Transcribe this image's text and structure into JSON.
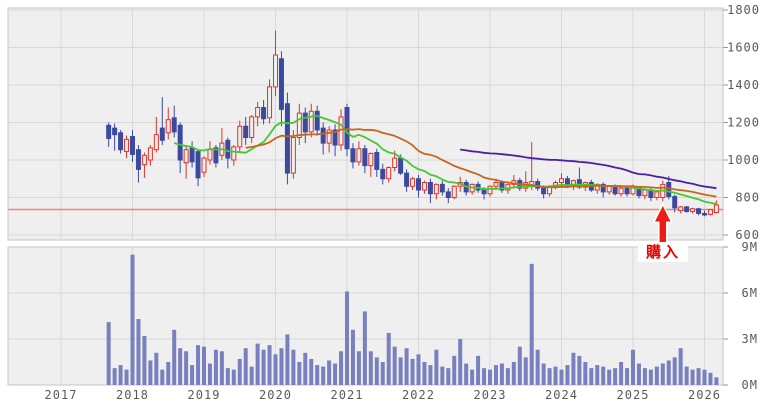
{
  "chart_data": {
    "type": "candlestick_with_volume",
    "title": "",
    "price_axis": {
      "side": "right",
      "min": 600,
      "max": 1800,
      "tick_values": [
        1800,
        1600,
        1400,
        1200,
        1000,
        800,
        600
      ],
      "tick_labels": [
        "1800",
        "1600",
        "1400",
        "1200",
        "1000",
        "800",
        "600"
      ]
    },
    "volume_axis": {
      "side": "right",
      "min_m": 0,
      "max_m": 9,
      "tick_values_m": [
        9,
        6,
        3,
        0
      ],
      "tick_labels": [
        "9M",
        "6M",
        "3M",
        "0M"
      ]
    },
    "x_axis": {
      "labels": [
        "2017",
        "2018",
        "2019",
        "2020",
        "2021",
        "2022",
        "2023",
        "2024",
        "2025",
        "2026"
      ],
      "first_candle_month": "2017-09"
    },
    "reference_line": {
      "price": 736,
      "color": "#f2837a"
    },
    "moving_averages": [
      {
        "name": "short-ma",
        "period": 12,
        "color": "#46c832"
      },
      {
        "name": "mid-ma",
        "period": 24,
        "color": "#c8661e"
      },
      {
        "name": "long-ma",
        "period": 60,
        "color": "#4a1fa8"
      }
    ],
    "annotation": {
      "label": "購入",
      "month": "2025-06",
      "color": "#ed1c16"
    },
    "colors": {
      "up_candle": "#e03228",
      "down_candle": "#3a4a9f",
      "volume_bar": "#7880bf",
      "panel_bg": "#efefef",
      "grid": "#d8d8d8",
      "border": "#c6c6c6",
      "axis_text": "#595959"
    },
    "candles_columns": [
      "month",
      "open",
      "high",
      "low",
      "close",
      "volume_m"
    ],
    "candles": [
      [
        "2017-09",
        1185,
        1200,
        1070,
        1115,
        4.1
      ],
      [
        "2017-10",
        1170,
        1195,
        1050,
        1135,
        1.1
      ],
      [
        "2017-11",
        1145,
        1160,
        1035,
        1055,
        1.3
      ],
      [
        "2017-12",
        1045,
        1130,
        1010,
        1110,
        1.0
      ],
      [
        "2018-01",
        1125,
        1160,
        990,
        1030,
        8.5
      ],
      [
        "2018-02",
        1055,
        1080,
        880,
        950,
        4.3
      ],
      [
        "2018-03",
        975,
        1040,
        905,
        1025,
        3.2
      ],
      [
        "2018-04",
        1000,
        1080,
        970,
        1065,
        1.6
      ],
      [
        "2018-05",
        1055,
        1230,
        1040,
        1135,
        2.1
      ],
      [
        "2018-06",
        1170,
        1335,
        1080,
        1105,
        1.0
      ],
      [
        "2018-07",
        1145,
        1280,
        1110,
        1215,
        1.5
      ],
      [
        "2018-08",
        1225,
        1290,
        1120,
        1150,
        3.6
      ],
      [
        "2018-09",
        1185,
        1200,
        930,
        1000,
        2.4
      ],
      [
        "2018-10",
        985,
        1080,
        900,
        1055,
        2.2
      ],
      [
        "2018-11",
        1065,
        1100,
        960,
        990,
        1.3
      ],
      [
        "2018-12",
        1045,
        1060,
        860,
        905,
        2.6
      ],
      [
        "2019-01",
        935,
        1020,
        910,
        1010,
        2.5
      ],
      [
        "2019-02",
        1000,
        1100,
        975,
        1055,
        1.4
      ],
      [
        "2019-03",
        1065,
        1080,
        960,
        985,
        2.3
      ],
      [
        "2019-04",
        1025,
        1170,
        1000,
        1090,
        2.2
      ],
      [
        "2019-05",
        1105,
        1120,
        955,
        1010,
        1.1
      ],
      [
        "2019-06",
        1000,
        1080,
        970,
        1070,
        1.0
      ],
      [
        "2019-07",
        1070,
        1210,
        1040,
        1180,
        1.7
      ],
      [
        "2019-08",
        1180,
        1230,
        1080,
        1120,
        2.4
      ],
      [
        "2019-09",
        1120,
        1240,
        1090,
        1230,
        1.2
      ],
      [
        "2019-10",
        1230,
        1310,
        1180,
        1280,
        2.7
      ],
      [
        "2019-11",
        1280,
        1320,
        1190,
        1220,
        2.3
      ],
      [
        "2019-12",
        1225,
        1430,
        1195,
        1390,
        2.6
      ],
      [
        "2020-01",
        1390,
        1690,
        1340,
        1560,
        2.0
      ],
      [
        "2020-02",
        1540,
        1580,
        1180,
        1270,
        2.4
      ],
      [
        "2020-03",
        1300,
        1360,
        870,
        930,
        3.3
      ],
      [
        "2020-04",
        930,
        1160,
        900,
        1120,
        2.3
      ],
      [
        "2020-05",
        1120,
        1300,
        1080,
        1250,
        1.5
      ],
      [
        "2020-06",
        1250,
        1280,
        1090,
        1150,
        2.1
      ],
      [
        "2020-07",
        1150,
        1300,
        1120,
        1260,
        1.7
      ],
      [
        "2020-08",
        1260,
        1290,
        1130,
        1160,
        1.3
      ],
      [
        "2020-09",
        1170,
        1200,
        1030,
        1090,
        1.2
      ],
      [
        "2020-10",
        1090,
        1180,
        1040,
        1160,
        1.6
      ],
      [
        "2020-11",
        1160,
        1190,
        1020,
        1080,
        1.4
      ],
      [
        "2020-12",
        1080,
        1270,
        1050,
        1230,
        2.2
      ],
      [
        "2021-01",
        1280,
        1300,
        1020,
        1060,
        6.1
      ],
      [
        "2021-02",
        1060,
        1090,
        955,
        990,
        3.6
      ],
      [
        "2021-03",
        990,
        1100,
        970,
        1060,
        2.2
      ],
      [
        "2021-04",
        1060,
        1080,
        930,
        970,
        4.8
      ],
      [
        "2021-05",
        970,
        1040,
        910,
        1035,
        2.2
      ],
      [
        "2021-06",
        1040,
        1060,
        910,
        950,
        1.8
      ],
      [
        "2021-07",
        950,
        980,
        870,
        900,
        1.5
      ],
      [
        "2021-08",
        900,
        965,
        880,
        960,
        3.4
      ],
      [
        "2021-09",
        960,
        1050,
        940,
        1010,
        2.5
      ],
      [
        "2021-10",
        1010,
        1030,
        920,
        930,
        1.8
      ],
      [
        "2021-11",
        930,
        950,
        830,
        860,
        2.4
      ],
      [
        "2021-12",
        860,
        910,
        840,
        900,
        1.7
      ],
      [
        "2022-01",
        900,
        920,
        800,
        840,
        2.0
      ],
      [
        "2022-02",
        840,
        890,
        820,
        880,
        1.5
      ],
      [
        "2022-03",
        880,
        900,
        770,
        820,
        1.3
      ],
      [
        "2022-04",
        820,
        875,
        790,
        870,
        2.3
      ],
      [
        "2022-05",
        870,
        890,
        810,
        830,
        1.2
      ],
      [
        "2022-06",
        830,
        850,
        770,
        800,
        1.1
      ],
      [
        "2022-07",
        800,
        865,
        790,
        860,
        1.9
      ],
      [
        "2022-08",
        860,
        910,
        830,
        880,
        3.0
      ],
      [
        "2022-09",
        880,
        895,
        810,
        830,
        1.4
      ],
      [
        "2022-10",
        830,
        875,
        815,
        870,
        1.0
      ],
      [
        "2022-11",
        870,
        885,
        825,
        840,
        1.9
      ],
      [
        "2022-12",
        840,
        855,
        790,
        820,
        1.1
      ],
      [
        "2023-01",
        820,
        865,
        805,
        860,
        1.0
      ],
      [
        "2023-02",
        860,
        900,
        840,
        880,
        1.3
      ],
      [
        "2023-03",
        880,
        890,
        825,
        840,
        1.4
      ],
      [
        "2023-04",
        840,
        875,
        820,
        870,
        1.1
      ],
      [
        "2023-05",
        870,
        920,
        850,
        890,
        1.5
      ],
      [
        "2023-06",
        890,
        905,
        835,
        850,
        2.5
      ],
      [
        "2023-07",
        850,
        940,
        830,
        880,
        1.8
      ],
      [
        "2023-08",
        865,
        1095,
        840,
        885,
        7.9
      ],
      [
        "2023-09",
        885,
        900,
        835,
        850,
        2.3
      ],
      [
        "2023-10",
        850,
        865,
        795,
        820,
        1.4
      ],
      [
        "2023-11",
        820,
        865,
        805,
        860,
        1.1
      ],
      [
        "2023-12",
        860,
        890,
        845,
        880,
        1.2
      ],
      [
        "2024-01",
        880,
        930,
        860,
        900,
        1.0
      ],
      [
        "2024-02",
        900,
        915,
        850,
        860,
        1.3
      ],
      [
        "2024-03",
        860,
        895,
        840,
        890,
        2.1
      ],
      [
        "2024-04",
        895,
        960,
        845,
        855,
        1.9
      ],
      [
        "2024-05",
        855,
        885,
        835,
        880,
        1.5
      ],
      [
        "2024-06",
        880,
        895,
        830,
        840,
        1.1
      ],
      [
        "2024-07",
        840,
        875,
        820,
        870,
        1.3
      ],
      [
        "2024-08",
        870,
        880,
        800,
        830,
        1.2
      ],
      [
        "2024-09",
        830,
        865,
        815,
        860,
        1.0
      ],
      [
        "2024-10",
        860,
        870,
        810,
        820,
        1.1
      ],
      [
        "2024-11",
        820,
        855,
        805,
        850,
        1.5
      ],
      [
        "2024-12",
        850,
        860,
        805,
        820,
        1.1
      ],
      [
        "2025-01",
        820,
        870,
        810,
        850,
        2.3
      ],
      [
        "2025-02",
        850,
        860,
        795,
        810,
        1.4
      ],
      [
        "2025-03",
        810,
        845,
        790,
        840,
        1.1
      ],
      [
        "2025-04",
        840,
        850,
        780,
        800,
        1.0
      ],
      [
        "2025-05",
        800,
        835,
        785,
        830,
        1.2
      ],
      [
        "2025-06",
        800,
        890,
        780,
        870,
        1.4
      ],
      [
        "2025-07",
        880,
        915,
        790,
        805,
        1.6
      ],
      [
        "2025-08",
        805,
        815,
        720,
        745,
        1.8
      ],
      [
        "2025-09",
        730,
        755,
        715,
        750,
        2.4
      ],
      [
        "2025-10",
        750,
        755,
        720,
        725,
        1.2
      ],
      [
        "2025-11",
        725,
        745,
        715,
        740,
        1.0
      ],
      [
        "2025-12",
        740,
        745,
        705,
        715,
        1.1
      ],
      [
        "2026-01",
        715,
        730,
        700,
        710,
        1.0
      ],
      [
        "2026-02",
        710,
        740,
        705,
        735,
        0.8
      ],
      [
        "2026-03",
        720,
        785,
        715,
        760,
        0.5
      ]
    ]
  }
}
